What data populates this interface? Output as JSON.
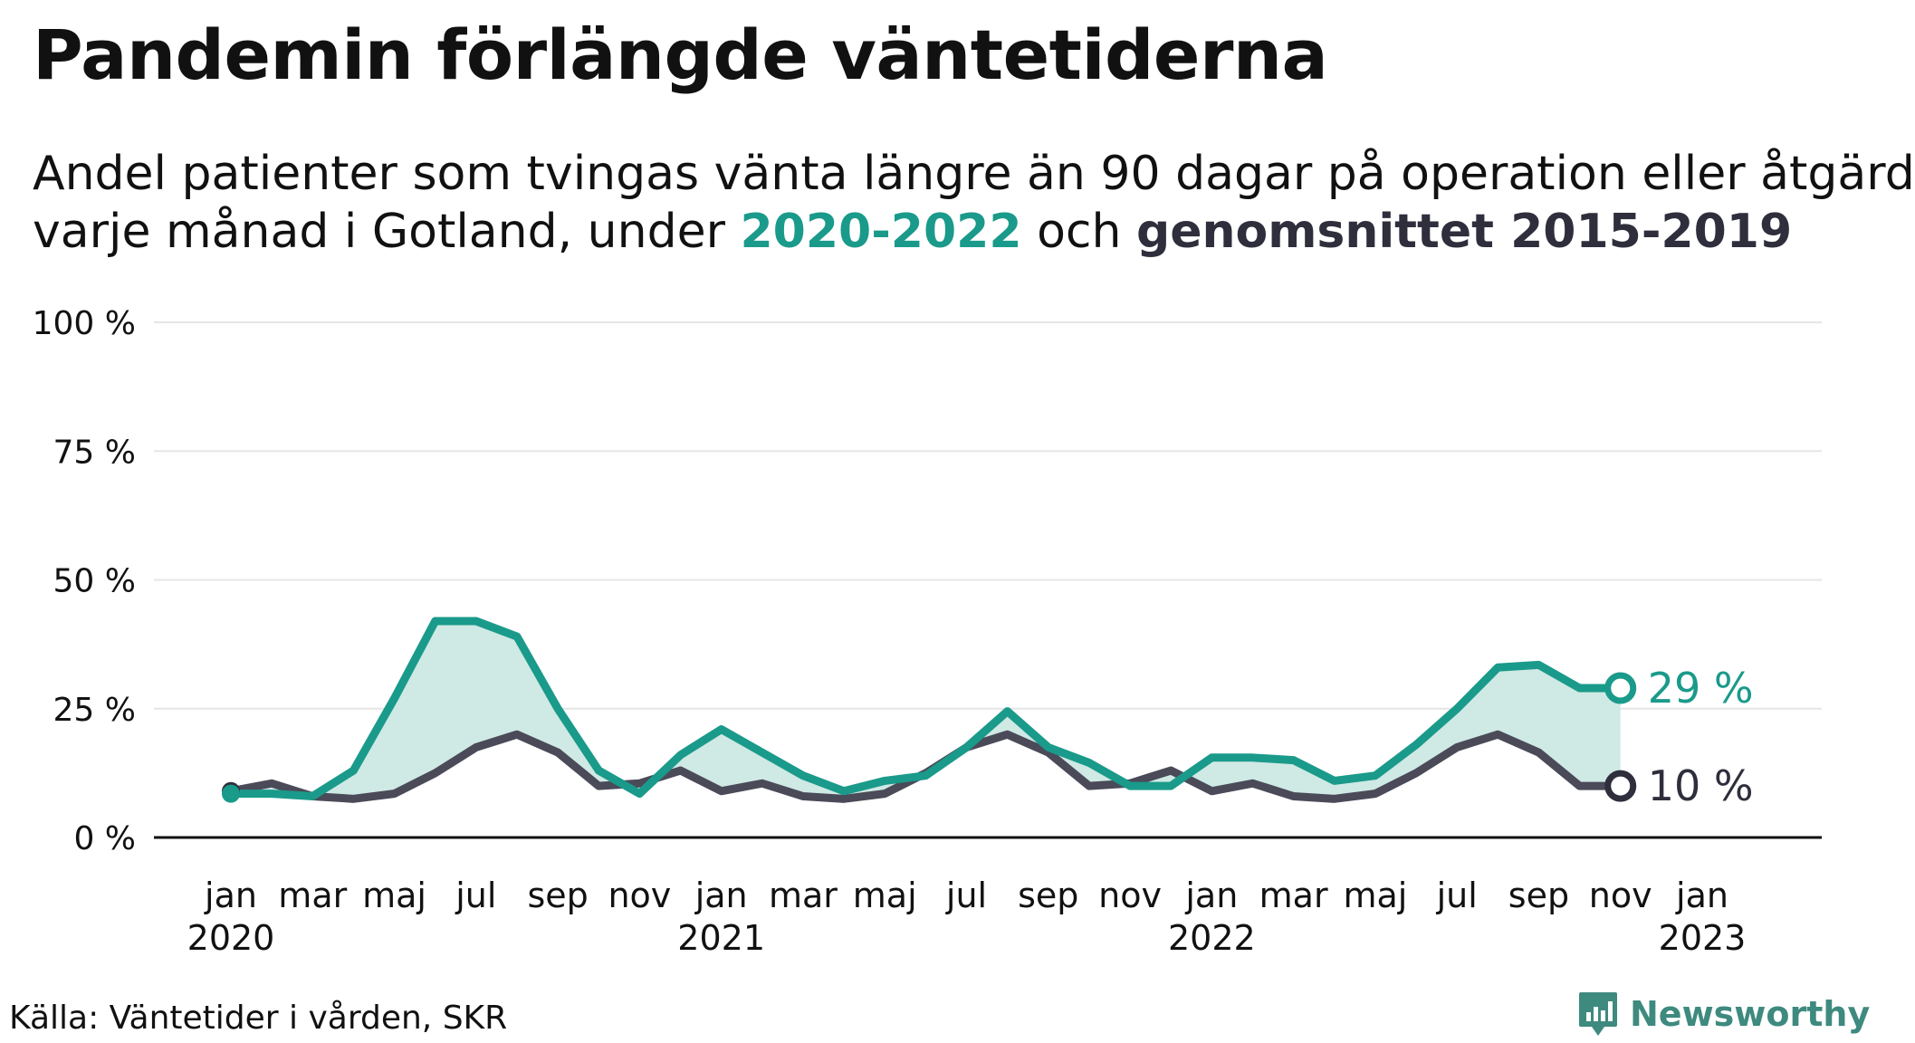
{
  "title": "Pandemin förlängde väntetiderna",
  "subtitle": {
    "line1": "Andel patienter som tvingas vänta längre än 90 dagar på operation eller åtgärd",
    "line2_prefix": "varje månad i Gotland, under ",
    "highlight_current": "2020-2022",
    "line2_middle": " och ",
    "highlight_average": "genomsnittet 2015-2019"
  },
  "source": "Källa: Väntetider i vården, SKR",
  "logo_text": "Newsworthy",
  "colors": {
    "current": "#1a9a8a",
    "average": "#4a4a58",
    "fill": "#cfe9e4",
    "axis": "#111111",
    "grid": "#e6e6e6"
  },
  "chart_data": {
    "type": "line",
    "title": "Pandemin förlängde väntetiderna",
    "xlabel": "",
    "ylabel": "",
    "ylim": [
      0,
      100
    ],
    "yticks": [
      0,
      25,
      50,
      75,
      100
    ],
    "ytick_labels": [
      "0 %",
      "25 %",
      "50 %",
      "75 %",
      "100 %"
    ],
    "xticks": [
      {
        "month": 0,
        "label": "jan",
        "year": "2020"
      },
      {
        "month": 2,
        "label": "mar",
        "year": ""
      },
      {
        "month": 4,
        "label": "maj",
        "year": ""
      },
      {
        "month": 6,
        "label": "jul",
        "year": ""
      },
      {
        "month": 8,
        "label": "sep",
        "year": ""
      },
      {
        "month": 10,
        "label": "nov",
        "year": ""
      },
      {
        "month": 12,
        "label": "jan",
        "year": "2021"
      },
      {
        "month": 14,
        "label": "mar",
        "year": ""
      },
      {
        "month": 16,
        "label": "maj",
        "year": ""
      },
      {
        "month": 18,
        "label": "jul",
        "year": ""
      },
      {
        "month": 20,
        "label": "sep",
        "year": ""
      },
      {
        "month": 22,
        "label": "nov",
        "year": ""
      },
      {
        "month": 24,
        "label": "jan",
        "year": "2022"
      },
      {
        "month": 26,
        "label": "mar",
        "year": ""
      },
      {
        "month": 28,
        "label": "maj",
        "year": ""
      },
      {
        "month": 30,
        "label": "jul",
        "year": ""
      },
      {
        "month": 32,
        "label": "sep",
        "year": ""
      },
      {
        "month": 34,
        "label": "nov",
        "year": ""
      },
      {
        "month": 36,
        "label": "jan",
        "year": "2023"
      }
    ],
    "x_range": [
      0,
      36
    ],
    "grid": true,
    "legend": "none",
    "series": [
      {
        "key": "current",
        "values": [
          8.5,
          8.5,
          8,
          13,
          27,
          42,
          42,
          39,
          25,
          13,
          8.5,
          16,
          21,
          16.5,
          12,
          9,
          11,
          12,
          17.5,
          24.5,
          17.5,
          14.5,
          10,
          10,
          15.5,
          15.5,
          15,
          11,
          12,
          18,
          25,
          33,
          33.5,
          29,
          29
        ],
        "end_label": "29 %"
      },
      {
        "key": "average",
        "values": [
          9,
          10.5,
          8,
          7.5,
          8.5,
          12.5,
          17.5,
          20,
          16.5,
          10,
          10.5,
          13,
          9,
          10.5,
          8,
          7.5,
          8.5,
          12.5,
          17.5,
          20,
          16.5,
          10,
          10.5,
          13,
          9,
          10.5,
          8,
          7.5,
          8.5,
          12.5,
          17.5,
          20,
          16.5,
          10,
          10
        ],
        "end_label": "10 %"
      }
    ]
  }
}
